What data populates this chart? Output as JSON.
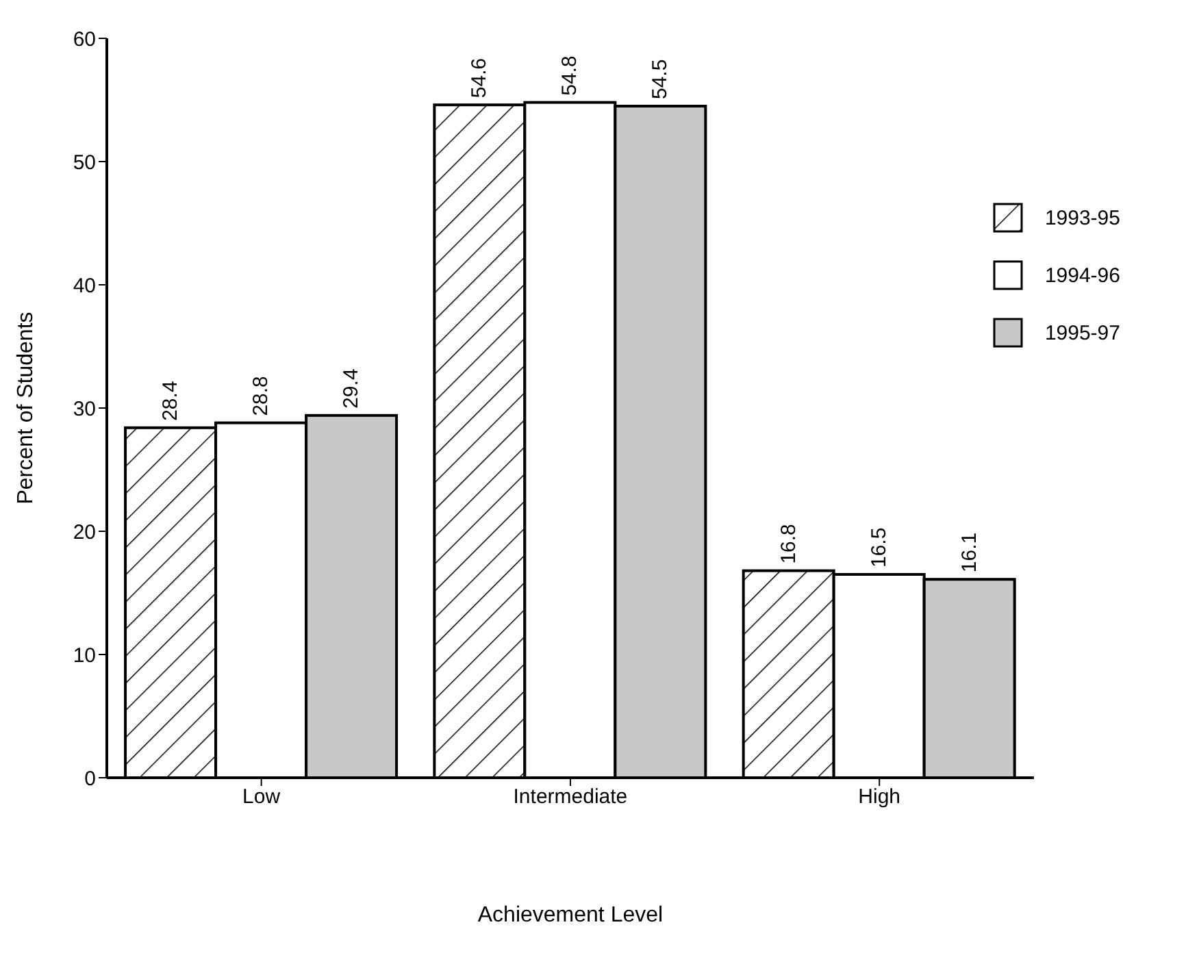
{
  "chart_data": {
    "type": "bar",
    "xlabel": "Achievement Level",
    "ylabel": "Percent of Students",
    "categories": [
      "Low",
      "Intermediate",
      "High"
    ],
    "series": [
      {
        "name": "1993-95",
        "color": "#ffffff",
        "values": [
          28.4,
          54.6,
          16.8
        ]
      },
      {
        "name": "1994-96",
        "color": "#ffffff",
        "values": [
          28.8,
          54.8,
          16.5
        ]
      },
      {
        "name": "1995-97",
        "color": "#c8c8c8",
        "values": [
          29.4,
          54.5,
          16.1
        ]
      }
    ],
    "ylim": [
      0,
      60
    ],
    "yticks": [
      0,
      10,
      20,
      30,
      40,
      50,
      60
    ],
    "grid": false,
    "legend": "right",
    "data_labels": true
  }
}
